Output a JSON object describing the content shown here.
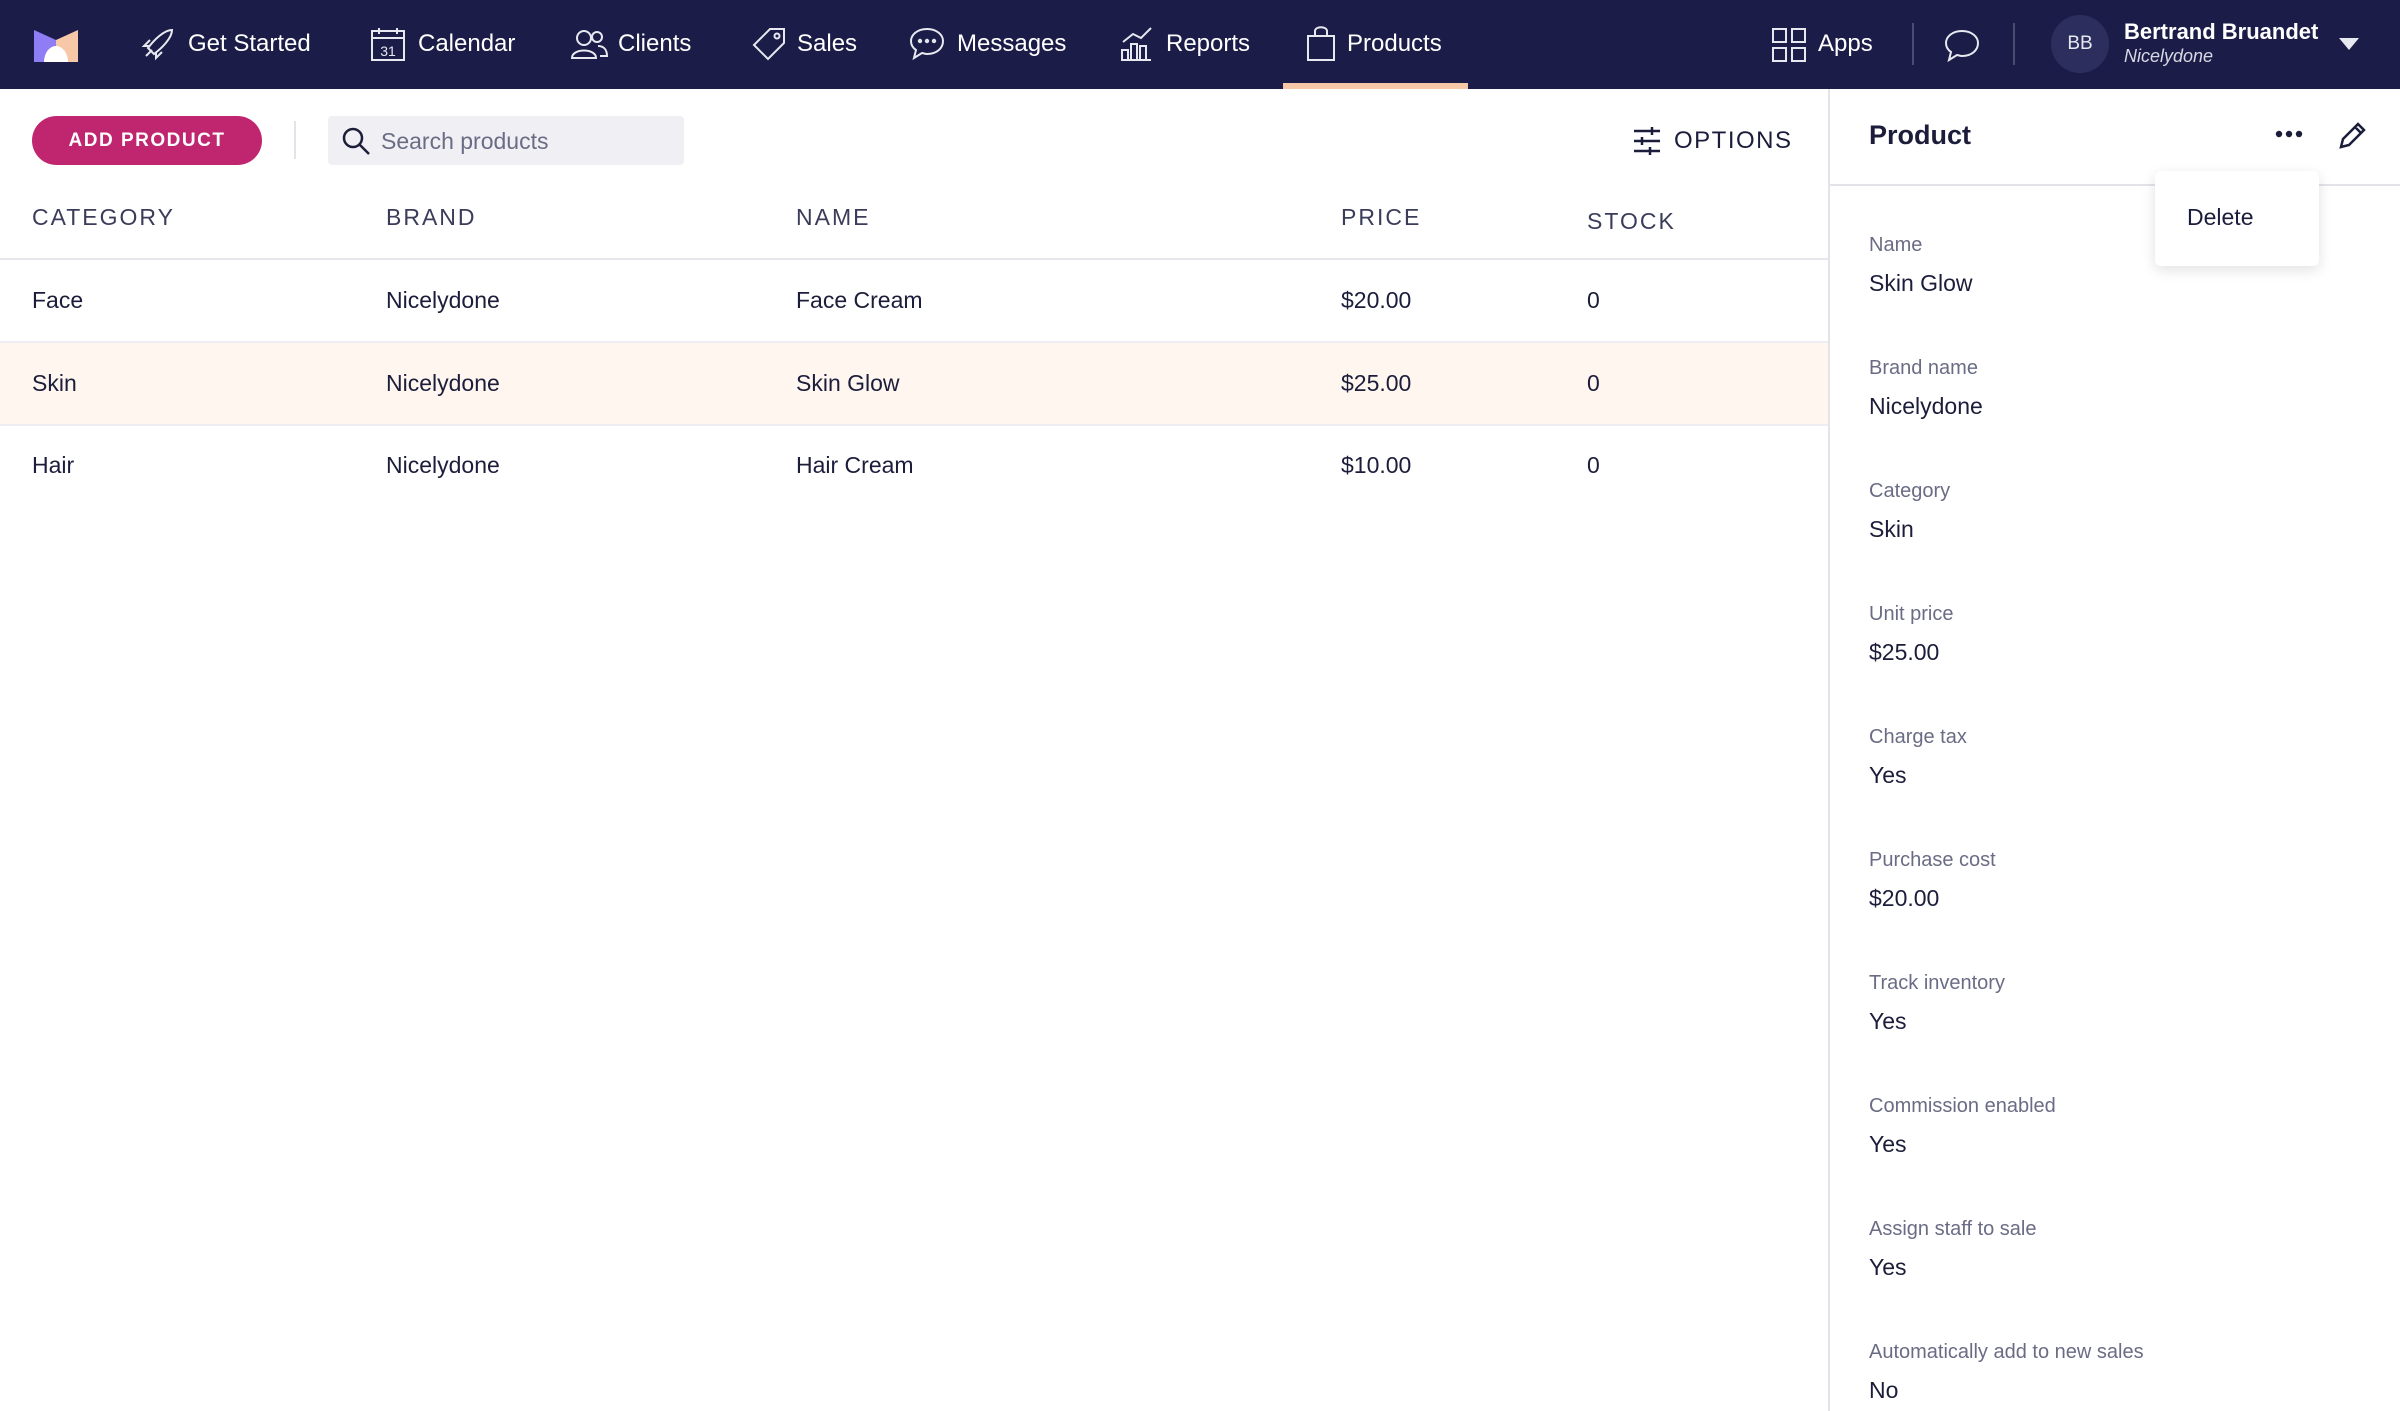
{
  "nav": {
    "items": [
      "Get Started",
      "Calendar",
      "Clients",
      "Sales",
      "Messages",
      "Reports",
      "Products"
    ],
    "apps": "Apps",
    "avatar": "BB",
    "user_name": "Bertrand Bruandet",
    "company": "Nicelydone"
  },
  "toolbar": {
    "add_button": "ADD PRODUCT",
    "search_placeholder": "Search products",
    "options": "OPTIONS"
  },
  "table": {
    "headers": [
      "CATEGORY",
      "BRAND",
      "NAME",
      "PRICE",
      "STOCK"
    ],
    "rows": [
      [
        "Face",
        "Nicelydone",
        "Face Cream",
        "$20.00",
        "0"
      ],
      [
        "Skin",
        "Nicelydone",
        "Skin Glow",
        "$25.00",
        "0"
      ],
      [
        "Hair",
        "Nicelydone",
        "Hair Cream",
        "$10.00",
        "0"
      ]
    ]
  },
  "panel": {
    "title": "Product",
    "menu": [
      "Delete"
    ],
    "fields": [
      [
        "Name",
        "Skin Glow"
      ],
      [
        "Brand name",
        "Nicelydone"
      ],
      [
        "Category",
        "Skin"
      ],
      [
        "Unit price",
        "$25.00"
      ],
      [
        "Charge tax",
        "Yes"
      ],
      [
        "Purchase cost",
        "$20.00"
      ],
      [
        "Track inventory",
        "Yes"
      ],
      [
        "Commission enabled",
        "Yes"
      ],
      [
        "Assign staff to sale",
        "Yes"
      ],
      [
        "Automatically add to new sales",
        "No"
      ]
    ]
  }
}
